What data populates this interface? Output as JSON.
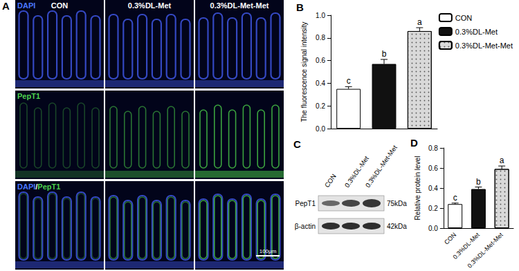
{
  "panel_labels": [
    "A",
    "B",
    "C",
    "D"
  ],
  "panel_a": {
    "columns": [
      "CON",
      "0.3%DL-Met",
      "0.3%DL-Met-Met"
    ],
    "rows": [
      "DAPI",
      "PepT1",
      "DAPI/PepT1"
    ],
    "scale_bar": "100μm"
  },
  "panel_c": {
    "lanes": [
      "CON",
      "0.3%DL-Met",
      "0.3%DL-Met-Met"
    ],
    "bands": [
      {
        "protein": "PepT1",
        "size": "75kDa"
      },
      {
        "protein": "β-actin",
        "size": "42kDa"
      }
    ]
  },
  "chart_data": [
    {
      "type": "bar",
      "ylabel": "The fluorescence signal intensity",
      "categories": [
        null,
        null,
        null
      ],
      "series": [
        {
          "name": "CON",
          "color": "#ffffff",
          "values": [
            0.35,
            null,
            null
          ],
          "errors": [
            0.02,
            null,
            null
          ],
          "letters": [
            "c",
            null,
            null
          ]
        },
        {
          "name": "0.3%DL-Met",
          "color": "#111111",
          "values": [
            null,
            0.57,
            null
          ],
          "errors": [
            null,
            0.04,
            null
          ],
          "letters": [
            null,
            "b",
            null
          ]
        },
        {
          "name": "0.3%DL-Met-Met",
          "color": "#d9d9d9",
          "values": [
            null,
            null,
            0.86
          ],
          "errors": [
            null,
            null,
            0.03
          ],
          "letters": [
            null,
            null,
            "a"
          ]
        }
      ],
      "ylim": [
        0,
        1.0
      ],
      "yticks": [
        {
          "value": 0,
          "label": "0.0"
        },
        {
          "value": 0.2,
          "label": "0.2"
        },
        {
          "value": 0.4,
          "label": "0.4"
        },
        {
          "value": 0.6,
          "label": "0.6"
        },
        {
          "value": 0.8,
          "label": "0.8"
        },
        {
          "value": 1.0,
          "label": "1.0"
        }
      ],
      "grid": false,
      "legend": "right",
      "tick_labels": "y"
    },
    {
      "type": "bar",
      "ylabel": "Relative protein level",
      "categories": [
        "CON",
        "0.3%DL-Met",
        "0.3%DL-Met-Met"
      ],
      "values": [
        0.24,
        0.39,
        0.59
      ],
      "colors": [
        "#ffffff",
        "#111111",
        "#d9d9d9"
      ],
      "errors": [
        0.01,
        0.02,
        0.03
      ],
      "letters": [
        "c",
        "b",
        "a"
      ],
      "ylim": [
        0,
        0.8
      ],
      "yticks": [
        {
          "value": 0,
          "label": "0.0"
        },
        {
          "value": 0.2,
          "label": "0.2"
        },
        {
          "value": 0.4,
          "label": "0.4"
        },
        {
          "value": 0.6,
          "label": "0.6"
        },
        {
          "value": 0.8,
          "label": "0.8"
        }
      ],
      "grid": false
    }
  ]
}
